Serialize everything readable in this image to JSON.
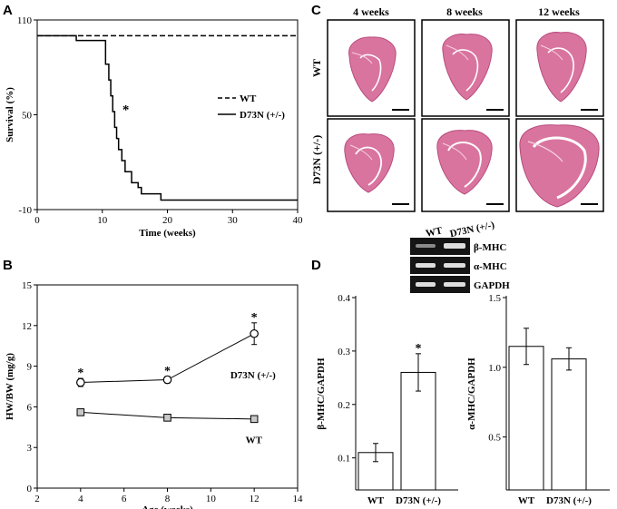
{
  "figure": {
    "panel_labels": {
      "a": "A",
      "b": "B",
      "c": "C",
      "d": "D"
    },
    "histology": {
      "columns": [
        "4 weeks",
        "8 weeks",
        "12 weeks"
      ],
      "rows": [
        "WT",
        "D73N (+/-)"
      ]
    },
    "gel": {
      "lanes": [
        "WT",
        "D73N (+/-)"
      ],
      "bands": [
        "β-MHC",
        "α-MHC",
        "GAPDH"
      ]
    },
    "colors": {
      "stain": "#d9749f",
      "stain_dark": "#b94b7e",
      "gel_bg": "#151515",
      "band": "#dedede"
    }
  },
  "chart_data": [
    {
      "id": "A",
      "type": "line",
      "title": "",
      "xlabel": "Time (weeks)",
      "ylabel": "Survival (%)",
      "xlim": [
        0,
        40
      ],
      "ylim": [
        -10,
        110
      ],
      "xticks": [
        0,
        10,
        20,
        30,
        40
      ],
      "yticks": [
        -10,
        50,
        110
      ],
      "annotation": "*",
      "series": [
        {
          "name": "WT",
          "style": "dashed",
          "x": [
            0,
            40
          ],
          "y": [
            100,
            100
          ]
        },
        {
          "name": "D73N (+/-)",
          "style": "step",
          "x": [
            0,
            6,
            10.5,
            11,
            11.3,
            11.6,
            11.9,
            12.2,
            12.5,
            13,
            13.5,
            14.5,
            15.5,
            16,
            19,
            40
          ],
          "y": [
            100,
            97,
            82,
            72,
            62,
            52,
            42,
            35,
            28,
            21,
            14,
            7,
            4,
            0,
            -4,
            -4
          ]
        }
      ]
    },
    {
      "id": "B",
      "type": "line",
      "title": "",
      "xlabel": "Age (weeks)",
      "ylabel": "HW/BW (mg/g)",
      "xlim": [
        2,
        14
      ],
      "ylim": [
        0,
        15
      ],
      "xticks": [
        2,
        4,
        6,
        8,
        10,
        12,
        14
      ],
      "yticks": [
        0,
        3,
        6,
        9,
        12,
        15
      ],
      "annotation": "*",
      "series": [
        {
          "name": "D73N (+/-)",
          "marker": "circle",
          "x": [
            4,
            8,
            12
          ],
          "y": [
            7.8,
            8.0,
            11.4
          ],
          "err": [
            0.3,
            0.25,
            0.8
          ]
        },
        {
          "name": "WT",
          "marker": "square",
          "x": [
            4,
            8,
            12
          ],
          "y": [
            5.6,
            5.2,
            5.1
          ],
          "err": [
            0.15,
            0.15,
            0.15
          ]
        }
      ]
    },
    {
      "id": "D1",
      "type": "bar",
      "title": "",
      "ylabel": "β-MHC/GAPDH",
      "xlabel": "",
      "categories": [
        "WT",
        "D73N (+/-)"
      ],
      "values": [
        0.11,
        0.26
      ],
      "errors": [
        0.017,
        0.035
      ],
      "ylim": [
        0.04,
        0.4
      ],
      "yticks": [
        0.1,
        0.2,
        0.3,
        0.4
      ],
      "annotation": "*"
    },
    {
      "id": "D2",
      "type": "bar",
      "title": "",
      "ylabel": "α-MHC/GAPDH",
      "xlabel": "",
      "categories": [
        "WT",
        "D73N (+/-)"
      ],
      "values": [
        1.15,
        1.06
      ],
      "errors": [
        0.13,
        0.08
      ],
      "ylim": [
        0.12,
        1.5
      ],
      "yticks": [
        0.5,
        1.0,
        1.5
      ],
      "ytick_labels": [
        "0.5",
        "1.0",
        "1.5"
      ]
    }
  ]
}
